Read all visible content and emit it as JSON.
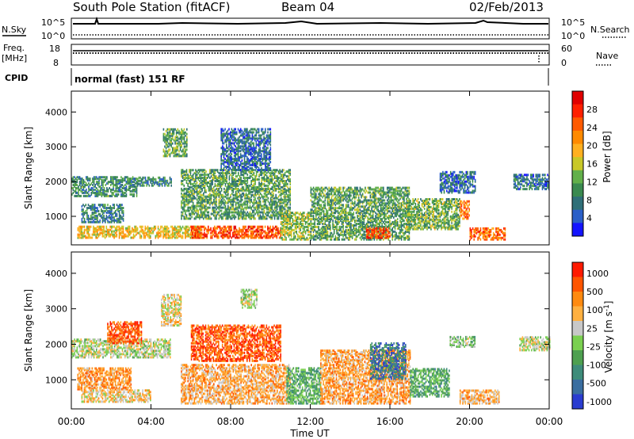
{
  "header": {
    "station": "South Pole Station (fitACF)",
    "beam": "Beam 04",
    "date": "02/Feb/2013"
  },
  "panels": {
    "nsky_label": "N.Sky",
    "nsky_tick_hi": "10^5",
    "nsky_tick_lo": "10^0",
    "nsearch_label": "N.Search",
    "freq_label": "Freq.",
    "freq_unit": "[MHz]",
    "freq_tick_hi": "18",
    "freq_tick_lo": "8",
    "nave_label": "Nave",
    "nave_tick_hi": "60",
    "nave_tick_lo": "0",
    "cpid_label": "CPID",
    "cpid_value": "normal (fast) 151 RF"
  },
  "chart_data": [
    {
      "type": "heatmap",
      "panel": "power",
      "ylabel": "Slant Range [km]",
      "xlabel": "Time UT",
      "x_ticks": [
        "00:00",
        "04:00",
        "08:00",
        "12:00",
        "16:00",
        "20:00",
        "00:00"
      ],
      "y_ticks": [
        1000,
        2000,
        3000,
        4000
      ],
      "ylim": [
        180,
        4600
      ],
      "xlim_hours": [
        0,
        24
      ],
      "colorbar": {
        "label": "Power [dB]",
        "ticks": [
          "4",
          "8",
          "12",
          "16",
          "20",
          "24",
          "28"
        ],
        "colors": [
          "#1414ff",
          "#2a5fc8",
          "#2f6f78",
          "#3a8a50",
          "#62b04a",
          "#c8c828",
          "#ffb020",
          "#ff8a00",
          "#ff5a00",
          "#ff2000",
          "#e00000"
        ]
      },
      "echo_regions": [
        {
          "t": [
            0.0,
            3.3
          ],
          "r": [
            1550,
            2100
          ],
          "level": 0.3
        },
        {
          "t": [
            3.3,
            5.0
          ],
          "r": [
            1850,
            2100
          ],
          "level": 0.28
        },
        {
          "t": [
            0.5,
            2.6
          ],
          "r": [
            800,
            1300
          ],
          "level": 0.25
        },
        {
          "t": [
            0.3,
            6.5
          ],
          "r": [
            350,
            700
          ],
          "level": 0.55
        },
        {
          "t": [
            4.6,
            5.8
          ],
          "r": [
            2700,
            3500
          ],
          "level": 0.35
        },
        {
          "t": [
            6.0,
            10.5
          ],
          "r": [
            350,
            700
          ],
          "level": 0.8
        },
        {
          "t": [
            5.5,
            11.0
          ],
          "r": [
            900,
            2300
          ],
          "level": 0.35
        },
        {
          "t": [
            7.5,
            10.0
          ],
          "r": [
            2300,
            3500
          ],
          "level": 0.2
        },
        {
          "t": [
            10.5,
            12.0
          ],
          "r": [
            300,
            1100
          ],
          "level": 0.45
        },
        {
          "t": [
            12.0,
            17.0
          ],
          "r": [
            300,
            1800
          ],
          "level": 0.35
        },
        {
          "t": [
            14.8,
            16.0
          ],
          "r": [
            350,
            650
          ],
          "level": 0.8
        },
        {
          "t": [
            16.8,
            19.5
          ],
          "r": [
            600,
            1500
          ],
          "level": 0.4
        },
        {
          "t": [
            18.5,
            20.3
          ],
          "r": [
            1650,
            2250
          ],
          "level": 0.2
        },
        {
          "t": [
            19.5,
            20.0
          ],
          "r": [
            900,
            1400
          ],
          "level": 0.7
        },
        {
          "t": [
            20.0,
            21.8
          ],
          "r": [
            300,
            650
          ],
          "level": 0.75
        },
        {
          "t": [
            22.2,
            24.0
          ],
          "r": [
            1750,
            2200
          ],
          "level": 0.22
        }
      ]
    },
    {
      "type": "heatmap",
      "panel": "velocity",
      "ylabel": "Slant Range [km]",
      "xlabel": "Time UT",
      "x_ticks": [
        "00:00",
        "04:00",
        "08:00",
        "12:00",
        "16:00",
        "20:00",
        "00:00"
      ],
      "y_ticks": [
        1000,
        2000,
        3000,
        4000
      ],
      "ylim": [
        180,
        4600
      ],
      "xlim_hours": [
        0,
        24
      ],
      "colorbar": {
        "label": "Velocity [m s",
        "label_sup": "-1",
        "label_close": "]",
        "ticks": [
          "1000",
          "500",
          "100",
          "25",
          "-25",
          "-100",
          "-500",
          "-1000"
        ],
        "colors": [
          "#2a3cd0",
          "#3a6ea0",
          "#3e8c7a",
          "#4ea050",
          "#7ad050",
          "#c8c8c8",
          "#ffb040",
          "#ff8a10",
          "#ff5500",
          "#ff1a00"
        ]
      },
      "echo_regions": [
        {
          "t": [
            0.0,
            5.0
          ],
          "r": [
            1600,
            2100
          ],
          "level": 0.52
        },
        {
          "t": [
            0.3,
            3.0
          ],
          "r": [
            700,
            1300
          ],
          "level": 0.72
        },
        {
          "t": [
            0.5,
            4.0
          ],
          "r": [
            350,
            700
          ],
          "level": 0.62
        },
        {
          "t": [
            1.8,
            3.5
          ],
          "r": [
            2000,
            2600
          ],
          "level": 0.85
        },
        {
          "t": [
            4.5,
            5.5
          ],
          "r": [
            2500,
            3400
          ],
          "level": 0.58
        },
        {
          "t": [
            5.5,
            11.0
          ],
          "r": [
            300,
            1400
          ],
          "level": 0.68
        },
        {
          "t": [
            6.0,
            10.5
          ],
          "r": [
            1500,
            2500
          ],
          "level": 0.85
        },
        {
          "t": [
            8.5,
            9.3
          ],
          "r": [
            3000,
            3500
          ],
          "level": 0.52
        },
        {
          "t": [
            10.8,
            12.5
          ],
          "r": [
            300,
            1300
          ],
          "level": 0.36
        },
        {
          "t": [
            12.5,
            17.0
          ],
          "r": [
            300,
            1800
          ],
          "level": 0.7
        },
        {
          "t": [
            15.0,
            16.8
          ],
          "r": [
            1000,
            2000
          ],
          "level": 0.2
        },
        {
          "t": [
            17.0,
            19.0
          ],
          "r": [
            500,
            1300
          ],
          "level": 0.35
        },
        {
          "t": [
            19.0,
            20.3
          ],
          "r": [
            1900,
            2200
          ],
          "level": 0.45
        },
        {
          "t": [
            19.5,
            21.5
          ],
          "r": [
            300,
            700
          ],
          "level": 0.66
        },
        {
          "t": [
            22.5,
            24.0
          ],
          "r": [
            1800,
            2200
          ],
          "level": 0.52
        }
      ]
    }
  ]
}
